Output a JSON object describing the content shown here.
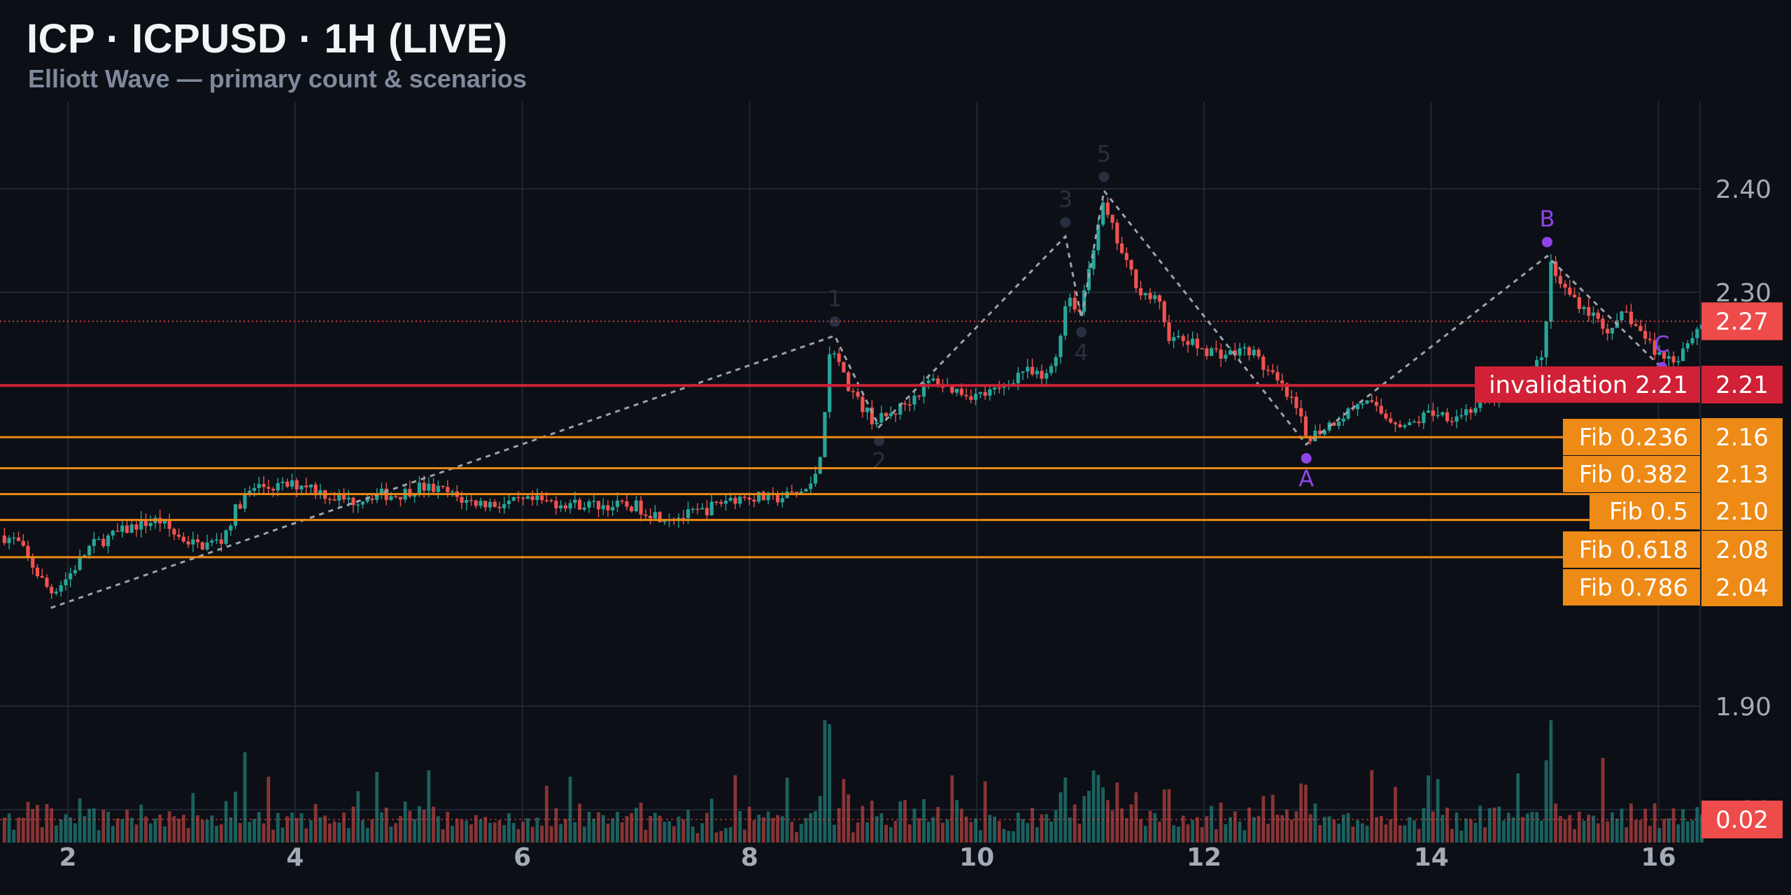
{
  "header": {
    "title": "ICP · ICPUSD · 1H (LIVE)",
    "subtitle": "Elliott Wave — primary count & scenarios"
  },
  "chart_data": {
    "type": "candlestick",
    "symbol": "ICPUSD",
    "interval": "1H",
    "x_axis": {
      "ticks": [
        2,
        4,
        6,
        8,
        10,
        12,
        14,
        16
      ],
      "range": [
        1.4,
        16.4
      ]
    },
    "y_axis": {
      "ticks": [
        2.4,
        2.3,
        1.9,
        1.8
      ],
      "tick_labels": [
        "2.40",
        "2.30",
        "1.90",
        "1.80"
      ],
      "range": [
        1.775,
        2.485
      ]
    },
    "price_path": [
      [
        1.4,
        2.065
      ],
      [
        1.55,
        2.06
      ],
      [
        1.75,
        2.025
      ],
      [
        1.85,
        2.01
      ],
      [
        2.0,
        2.025
      ],
      [
        2.2,
        2.055
      ],
      [
        2.4,
        2.065
      ],
      [
        2.6,
        2.075
      ],
      [
        2.8,
        2.08
      ],
      [
        2.95,
        2.065
      ],
      [
        3.15,
        2.055
      ],
      [
        3.35,
        2.06
      ],
      [
        3.5,
        2.095
      ],
      [
        3.65,
        2.112
      ],
      [
        3.85,
        2.112
      ],
      [
        4.1,
        2.115
      ],
      [
        4.3,
        2.103
      ],
      [
        4.5,
        2.098
      ],
      [
        4.7,
        2.105
      ],
      [
        4.9,
        2.104
      ],
      [
        5.1,
        2.112
      ],
      [
        5.3,
        2.108
      ],
      [
        5.5,
        2.098
      ],
      [
        5.8,
        2.095
      ],
      [
        6.1,
        2.098
      ],
      [
        6.4,
        2.096
      ],
      [
        6.7,
        2.094
      ],
      [
        7.0,
        2.093
      ],
      [
        7.2,
        2.084
      ],
      [
        7.4,
        2.083
      ],
      [
        7.6,
        2.089
      ],
      [
        7.8,
        2.1
      ],
      [
        8.0,
        2.103
      ],
      [
        8.2,
        2.1
      ],
      [
        8.4,
        2.105
      ],
      [
        8.55,
        2.112
      ],
      [
        8.63,
        2.15
      ],
      [
        8.72,
        2.255
      ],
      [
        8.82,
        2.22
      ],
      [
        8.95,
        2.195
      ],
      [
        9.1,
        2.175
      ],
      [
        9.25,
        2.182
      ],
      [
        9.4,
        2.195
      ],
      [
        9.6,
        2.215
      ],
      [
        9.8,
        2.206
      ],
      [
        10.0,
        2.2
      ],
      [
        10.2,
        2.205
      ],
      [
        10.4,
        2.225
      ],
      [
        10.6,
        2.215
      ],
      [
        10.7,
        2.24
      ],
      [
        10.8,
        2.3
      ],
      [
        10.9,
        2.28
      ],
      [
        11.0,
        2.33
      ],
      [
        11.1,
        2.385
      ],
      [
        11.2,
        2.36
      ],
      [
        11.3,
        2.33
      ],
      [
        11.45,
        2.3
      ],
      [
        11.6,
        2.29
      ],
      [
        11.7,
        2.255
      ],
      [
        11.85,
        2.252
      ],
      [
        12.0,
        2.245
      ],
      [
        12.2,
        2.24
      ],
      [
        12.4,
        2.245
      ],
      [
        12.55,
        2.225
      ],
      [
        12.7,
        2.205
      ],
      [
        12.82,
        2.185
      ],
      [
        12.9,
        2.16
      ],
      [
        13.0,
        2.165
      ],
      [
        13.2,
        2.18
      ],
      [
        13.4,
        2.195
      ],
      [
        13.6,
        2.18
      ],
      [
        13.8,
        2.17
      ],
      [
        14.0,
        2.185
      ],
      [
        14.2,
        2.18
      ],
      [
        14.4,
        2.19
      ],
      [
        14.6,
        2.2
      ],
      [
        14.8,
        2.22
      ],
      [
        14.98,
        2.235
      ],
      [
        15.05,
        2.325
      ],
      [
        15.15,
        2.305
      ],
      [
        15.3,
        2.29
      ],
      [
        15.45,
        2.275
      ],
      [
        15.6,
        2.26
      ],
      [
        15.7,
        2.282
      ],
      [
        15.85,
        2.26
      ],
      [
        16.0,
        2.24
      ],
      [
        16.15,
        2.235
      ],
      [
        16.25,
        2.252
      ],
      [
        16.4,
        2.272
      ]
    ],
    "wave_path": [
      [
        1.85,
        1.995
      ],
      [
        8.75,
        2.258
      ],
      [
        9.14,
        2.17
      ],
      [
        10.78,
        2.354
      ],
      [
        10.92,
        2.275
      ],
      [
        11.12,
        2.398
      ],
      [
        12.9,
        2.153
      ],
      [
        15.02,
        2.335
      ],
      [
        16.0,
        2.23
      ]
    ],
    "wave_labels": [
      {
        "label": "1",
        "x": 8.75,
        "y": 2.258,
        "pos": "above",
        "color": "#263041"
      },
      {
        "label": "2",
        "x": 9.14,
        "y": 2.17,
        "pos": "below",
        "color": "#263041"
      },
      {
        "label": "3",
        "x": 10.78,
        "y": 2.354,
        "pos": "above",
        "color": "#263041"
      },
      {
        "label": "4",
        "x": 10.92,
        "y": 2.275,
        "pos": "below",
        "color": "#263041"
      },
      {
        "label": "5",
        "x": 11.12,
        "y": 2.398,
        "pos": "above",
        "color": "#263041"
      },
      {
        "label": "A",
        "x": 12.9,
        "y": 2.153,
        "pos": "below",
        "color": "#8f44e6"
      },
      {
        "label": "B",
        "x": 15.02,
        "y": 2.335,
        "pos": "above",
        "color": "#8f44e6"
      },
      {
        "label": "C",
        "x": 16.03,
        "y": 2.214,
        "pos": "above",
        "color": "#8f44e6"
      }
    ],
    "levels": [
      {
        "label": "invalidation 2.21",
        "value": 2.21,
        "price_label": "2.21",
        "color": "#d02136",
        "kind": "invalidation"
      },
      {
        "label": "Fib 0.236",
        "value": 2.16,
        "price_label": "2.16",
        "color": "#ee8a16",
        "kind": "fib"
      },
      {
        "label": "Fib 0.382",
        "value": 2.13,
        "price_label": "2.13",
        "color": "#ee8a16",
        "kind": "fib"
      },
      {
        "label": "Fib 0.5",
        "value": 2.105,
        "price_label": "2.10",
        "color": "#ee8a16",
        "kind": "fib"
      },
      {
        "label": "Fib 0.618",
        "value": 2.08,
        "price_label": "2.08",
        "color": "#ee8a16",
        "kind": "fib"
      },
      {
        "label": "Fib 0.786",
        "value": 2.044,
        "price_label": "2.04",
        "color": "#ee8a16",
        "kind": "fib"
      }
    ],
    "last_price": {
      "value": 2.272,
      "label": "2.27",
      "color": "#ee4b4b"
    },
    "volume": {
      "last_label": "0.02",
      "last_color": "#ee4b4b"
    },
    "colors": {
      "up": "#26a69a",
      "down": "#ef5350",
      "wave_line": "#9aa2ad",
      "grid": "#1f2734",
      "axis_text": "#a3abb7"
    }
  }
}
